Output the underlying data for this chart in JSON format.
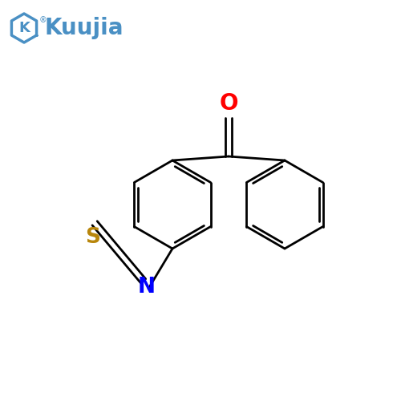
{
  "bg_color": "#ffffff",
  "bond_color": "#000000",
  "atom_colors": {
    "O": "#ff0000",
    "N": "#0000ff",
    "S": "#b8860b"
  },
  "logo_color": "#4a90c4",
  "lw": 2.0,
  "ring_r": 55
}
